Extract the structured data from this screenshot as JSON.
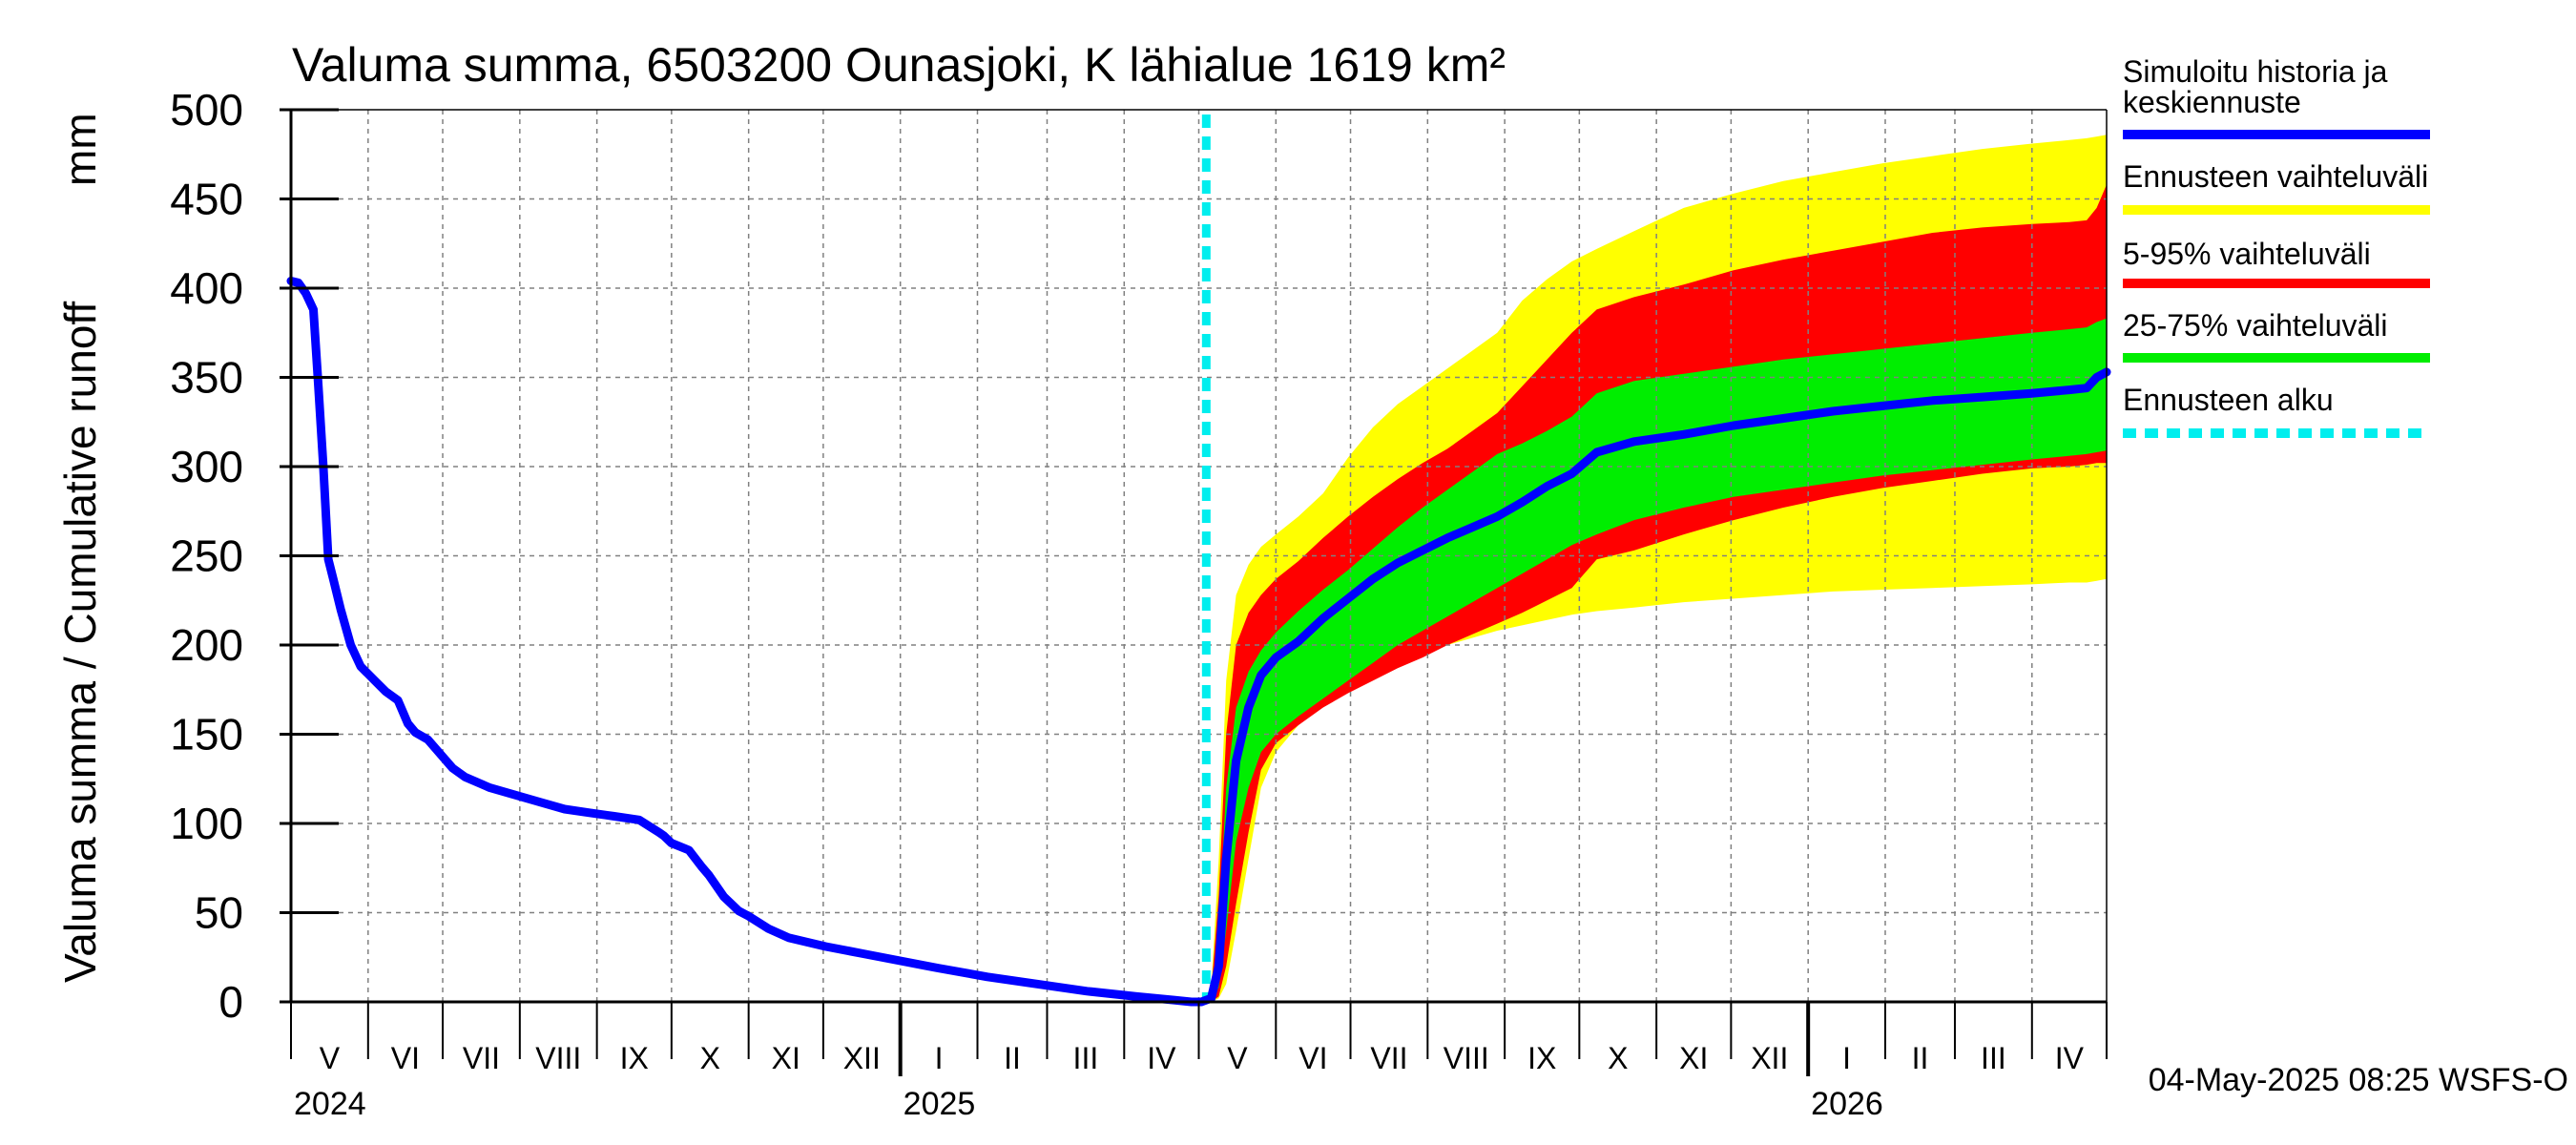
{
  "chart_data": {
    "type": "area",
    "title": "Valuma summa, 6503200 Ounasjoki, K lähialue 1619 km²",
    "ylabel": "Valuma summa / Cumulative runoff",
    "yunit": "mm",
    "ylim": [
      0,
      500
    ],
    "yticks": [
      0,
      50,
      100,
      150,
      200,
      250,
      300,
      350,
      400,
      450,
      500
    ],
    "xlim_days": [
      0,
      730
    ],
    "month_labels": [
      {
        "label": "V",
        "start": 0,
        "end": 31
      },
      {
        "label": "VI",
        "start": 31,
        "end": 61
      },
      {
        "label": "VII",
        "start": 61,
        "end": 92
      },
      {
        "label": "VIII",
        "start": 92,
        "end": 123
      },
      {
        "label": "IX",
        "start": 123,
        "end": 153
      },
      {
        "label": "X",
        "start": 153,
        "end": 184
      },
      {
        "label": "XI",
        "start": 184,
        "end": 214
      },
      {
        "label": "XII",
        "start": 214,
        "end": 245
      },
      {
        "label": "I",
        "start": 245,
        "end": 276
      },
      {
        "label": "II",
        "start": 276,
        "end": 304
      },
      {
        "label": "III",
        "start": 304,
        "end": 335
      },
      {
        "label": "IV",
        "start": 335,
        "end": 365
      },
      {
        "label": "V",
        "start": 365,
        "end": 396
      },
      {
        "label": "VI",
        "start": 396,
        "end": 426
      },
      {
        "label": "VII",
        "start": 426,
        "end": 457
      },
      {
        "label": "VIII",
        "start": 457,
        "end": 488
      },
      {
        "label": "IX",
        "start": 488,
        "end": 518
      },
      {
        "label": "X",
        "start": 518,
        "end": 549
      },
      {
        "label": "XI",
        "start": 549,
        "end": 579
      },
      {
        "label": "XII",
        "start": 579,
        "end": 610
      },
      {
        "label": "I",
        "start": 610,
        "end": 641
      },
      {
        "label": "II",
        "start": 641,
        "end": 669
      },
      {
        "label": "III",
        "start": 669,
        "end": 700
      },
      {
        "label": "IV",
        "start": 700,
        "end": 730
      }
    ],
    "year_labels": [
      {
        "label": "2024",
        "day": 0
      },
      {
        "label": "2025",
        "day": 245
      },
      {
        "label": "2026",
        "day": 610
      }
    ],
    "forecast_start_day": 368,
    "history": {
      "name": "Simuloitu historia ja keskiennuste",
      "x": [
        0,
        3,
        6,
        9,
        11,
        13,
        15,
        17,
        20,
        24,
        28,
        33,
        38,
        43,
        47,
        50,
        55,
        60,
        65,
        70,
        80,
        90,
        100,
        110,
        120,
        130,
        140,
        148,
        150,
        153,
        160,
        165,
        168,
        174,
        180,
        184,
        192,
        200,
        215,
        230,
        245,
        260,
        280,
        300,
        320,
        340,
        355,
        362,
        366
      ],
      "y": [
        404,
        403,
        397,
        388,
        345,
        300,
        248,
        237,
        220,
        200,
        188,
        181,
        174,
        169,
        156,
        151,
        147,
        139,
        131,
        126,
        120,
        116,
        112,
        108,
        106,
        104,
        102,
        95,
        93,
        89,
        85,
        76,
        71,
        59,
        51,
        48,
        41,
        36,
        31,
        27,
        23,
        19,
        14,
        10,
        6,
        3,
        1,
        0,
        0
      ]
    },
    "forecast": {
      "x": [
        366,
        370,
        373,
        376,
        380,
        385,
        390,
        396,
        405,
        415,
        425,
        435,
        445,
        455,
        465,
        475,
        485,
        495,
        505,
        515,
        525,
        540,
        560,
        580,
        600,
        620,
        640,
        660,
        680,
        700,
        715,
        722,
        726,
        730
      ],
      "median": {
        "name": "Simuloitu historia ja keskiennuste",
        "values": [
          0,
          2,
          20,
          80,
          135,
          165,
          183,
          193,
          202,
          215,
          226,
          237,
          246,
          253,
          260,
          266,
          272,
          280,
          289,
          296,
          308,
          314,
          318,
          323,
          327,
          331,
          334,
          337,
          339,
          341,
          343,
          344,
          350,
          353
        ]
      },
      "p25": {
        "values": [
          0,
          1,
          8,
          40,
          90,
          120,
          140,
          150,
          160,
          170,
          180,
          190,
          200,
          208,
          216,
          224,
          232,
          240,
          248,
          256,
          262,
          270,
          277,
          283,
          287,
          291,
          295,
          298,
          301,
          304,
          306,
          307,
          308,
          309
        ]
      },
      "p75": {
        "values": [
          0,
          4,
          40,
          120,
          165,
          185,
          197,
          207,
          219,
          231,
          242,
          254,
          266,
          277,
          287,
          297,
          307,
          313,
          320,
          328,
          341,
          348,
          352,
          356,
          360,
          363,
          366,
          369,
          372,
          375,
          377,
          378,
          381,
          383
        ]
      },
      "p5": {
        "values": [
          0,
          0,
          3,
          20,
          55,
          95,
          130,
          145,
          155,
          165,
          173,
          180,
          187,
          193,
          200,
          206,
          212,
          218,
          225,
          232,
          248,
          253,
          262,
          270,
          277,
          283,
          288,
          292,
          296,
          299,
          300,
          301,
          302,
          302
        ]
      },
      "p95": {
        "values": [
          0,
          6,
          60,
          150,
          200,
          218,
          228,
          237,
          247,
          260,
          272,
          283,
          293,
          302,
          310,
          320,
          330,
          345,
          360,
          375,
          388,
          395,
          402,
          410,
          416,
          421,
          426,
          431,
          434,
          436,
          437,
          438,
          445,
          458
        ]
      },
      "min": {
        "values": [
          0,
          0,
          2,
          10,
          40,
          80,
          120,
          140,
          155,
          168,
          177,
          185,
          191,
          196,
          200,
          204,
          208,
          211,
          214,
          217,
          219,
          221,
          224,
          226,
          228,
          230,
          231,
          232,
          233,
          234,
          235,
          235,
          236,
          237
        ]
      },
      "max": {
        "values": [
          0,
          8,
          80,
          180,
          228,
          245,
          255,
          262,
          272,
          285,
          305,
          322,
          335,
          345,
          355,
          365,
          375,
          393,
          405,
          415,
          422,
          432,
          445,
          453,
          460,
          465,
          470,
          474,
          478,
          481,
          483,
          484,
          485,
          486
        ]
      }
    },
    "legend": [
      {
        "label": "Simuloitu historia ja keskiennuste",
        "color": "#0000ff",
        "style": "solid"
      },
      {
        "label": "Ennusteen vaihteluväli",
        "color": "#ffff00",
        "style": "solid"
      },
      {
        "label": "5-95% vaihteluväli",
        "color": "#ff0000",
        "style": "solid"
      },
      {
        "label": "25-75% vaihteluväli",
        "color": "#00ee00",
        "style": "solid"
      },
      {
        "label": "Ennusteen alku",
        "color": "#00eeee",
        "style": "dashed"
      }
    ],
    "colors": {
      "history": "#0000ff",
      "range": "#ffff00",
      "p5_95": "#ff0000",
      "p25_75": "#00ee00",
      "forecast_start": "#00eeee"
    },
    "footer": "04-May-2025 08:25 WSFS-O"
  }
}
